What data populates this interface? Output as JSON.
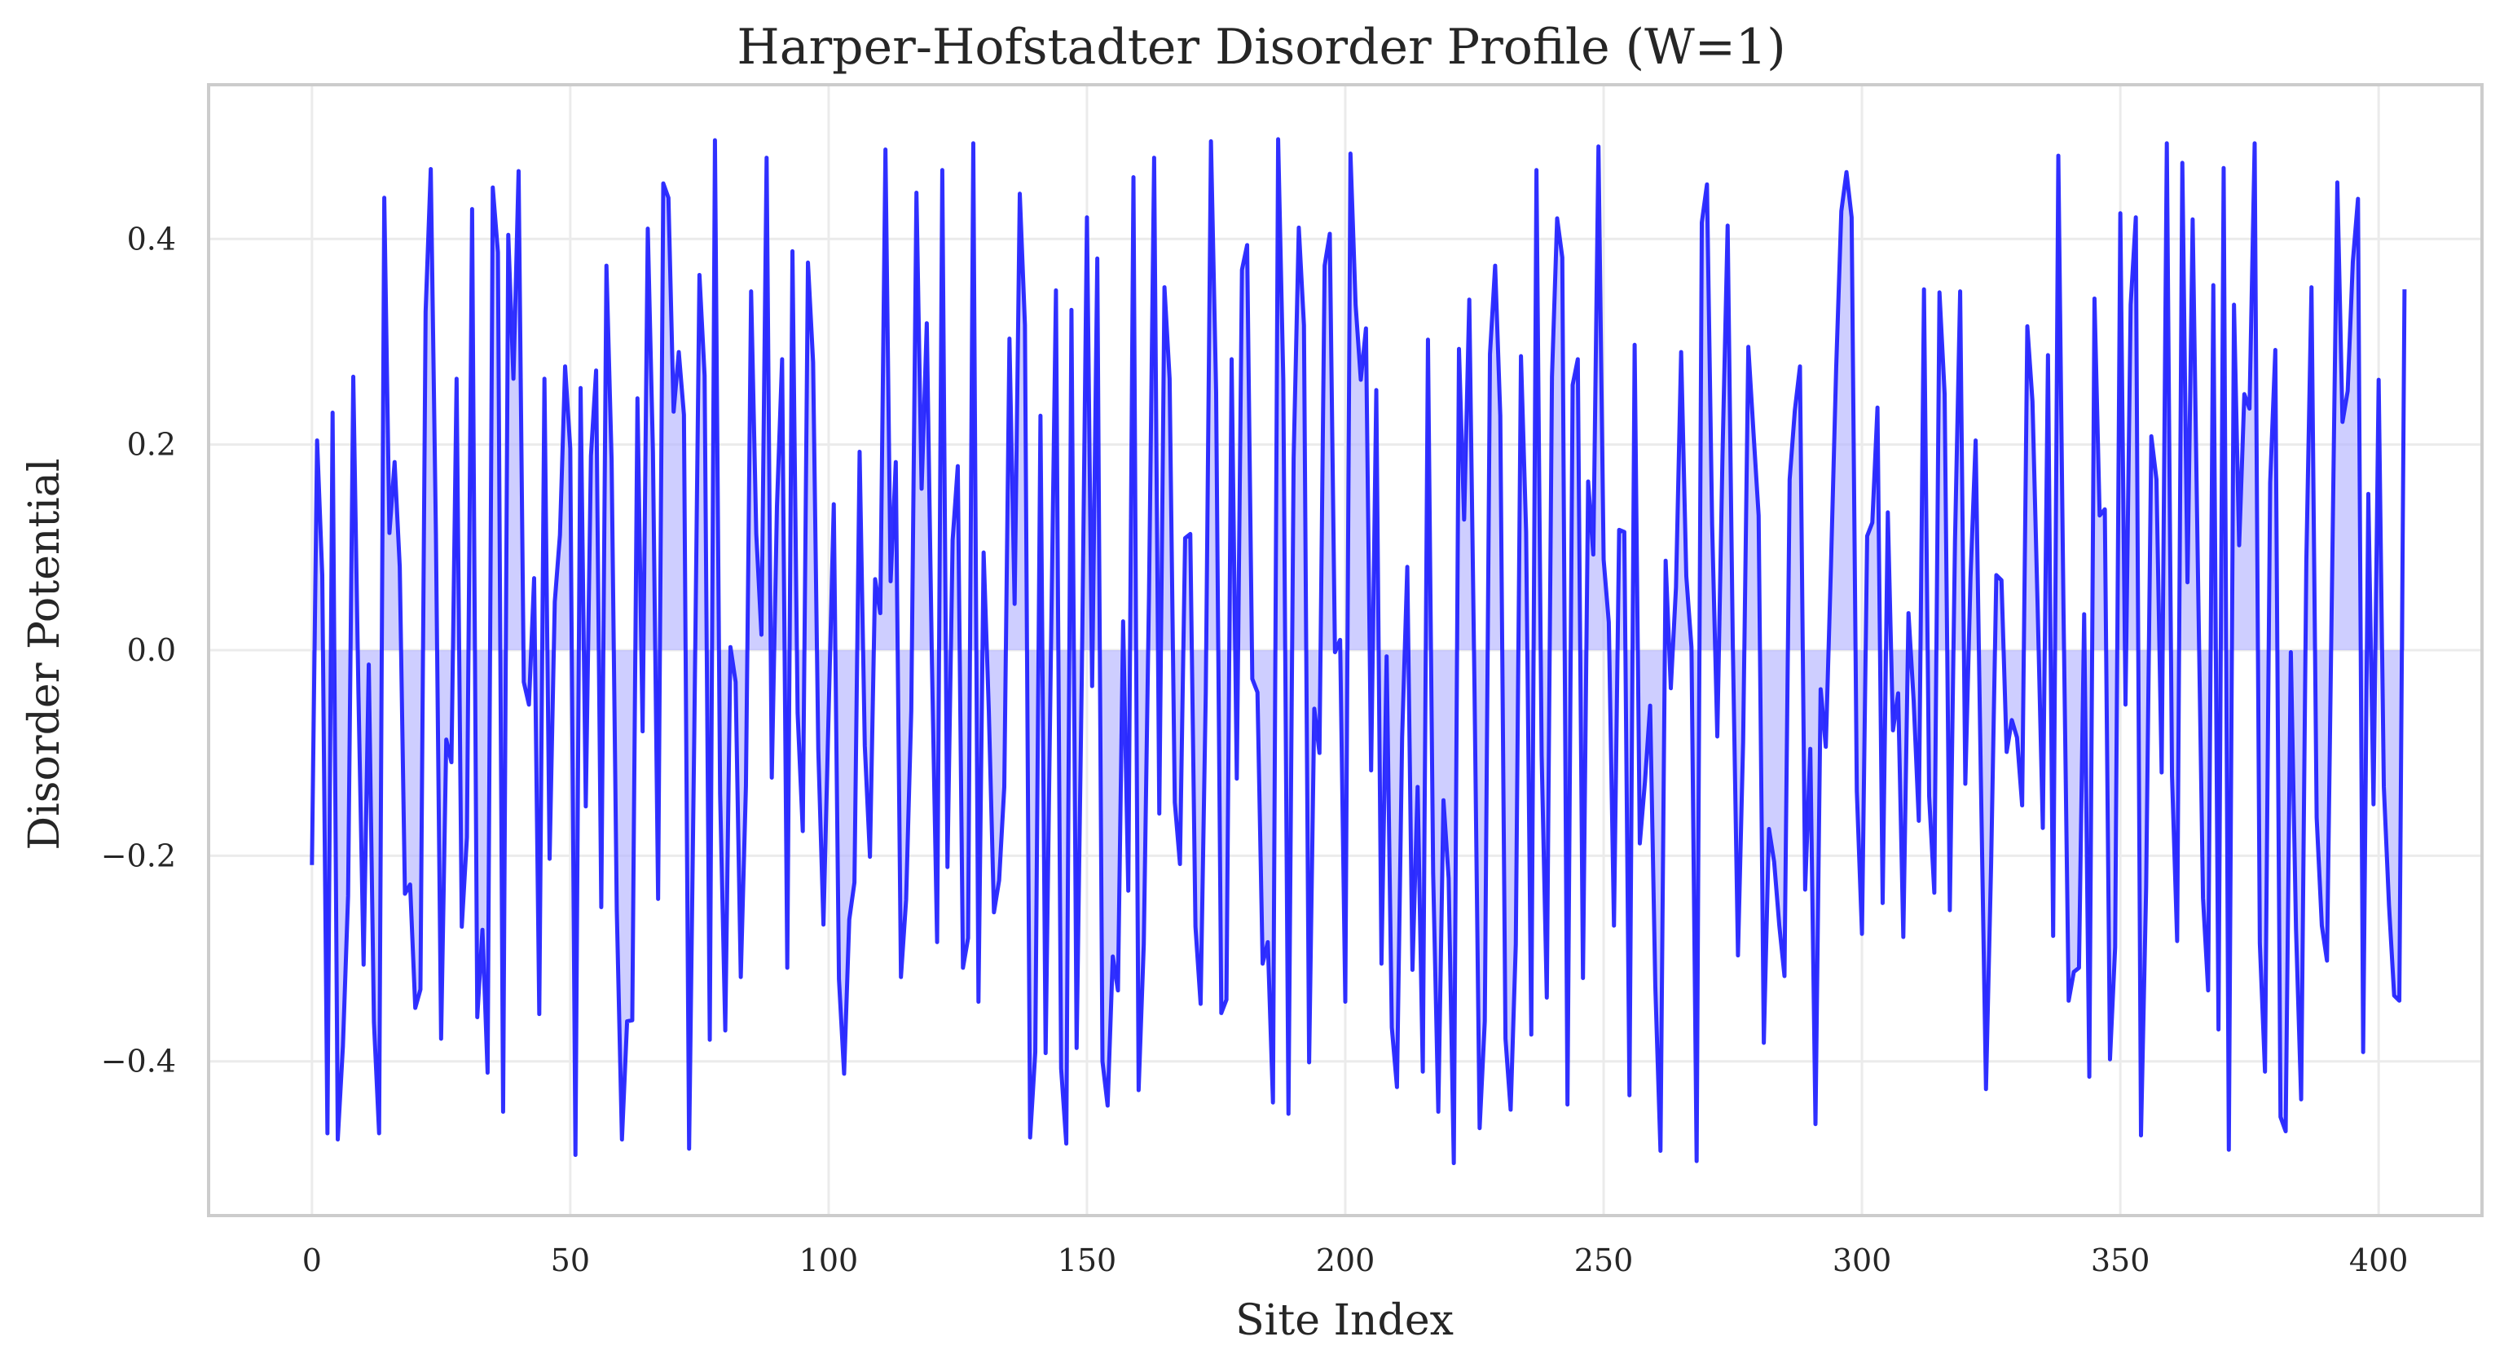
{
  "chart_data": {
    "type": "line",
    "title": "Harper-Hofstadter Disorder Profile (W=1)",
    "xlabel": "Site Index",
    "ylabel": "Disorder Potential",
    "xlim": [
      -20,
      420
    ],
    "ylim": [
      -0.55,
      0.55
    ],
    "xticks": [
      0,
      50,
      100,
      150,
      200,
      250,
      300,
      350,
      400
    ],
    "xtick_labels": [
      "0",
      "50",
      "100",
      "150",
      "200",
      "250",
      "300",
      "350",
      "400"
    ],
    "yticks": [
      -0.4,
      -0.2,
      0.0,
      0.2,
      0.4
    ],
    "ytick_labels": [
      "−0.4",
      "−0.2",
      "0.0",
      "0.2",
      "0.4"
    ],
    "grid": true,
    "fill_to_zero": true,
    "line_color": "#1a1aff",
    "fill_color": "#b3b3ff",
    "series": [
      {
        "x_start": 0,
        "x_step": 1,
        "values": [
          -0.209,
          0.204,
          0.073,
          -0.47,
          0.231,
          -0.476,
          -0.385,
          -0.239,
          0.266,
          -0.042,
          -0.306,
          -0.014,
          -0.362,
          -0.47,
          0.44,
          0.114,
          0.183,
          0.081,
          -0.237,
          -0.228,
          -0.348,
          -0.33,
          0.329,
          0.468,
          0.112,
          -0.378,
          -0.087,
          -0.109,
          0.264,
          -0.269,
          -0.182,
          0.429,
          -0.357,
          -0.272,
          -0.411,
          0.45,
          0.387,
          -0.449,
          0.404,
          0.264,
          0.466,
          -0.031,
          -0.053,
          0.07,
          -0.354,
          0.264,
          -0.203,
          0.047,
          0.112,
          0.276,
          0.196,
          -0.491,
          0.255,
          -0.152,
          0.189,
          0.272,
          -0.25,
          0.374,
          0.185,
          -0.253,
          -0.476,
          -0.361,
          -0.36,
          0.245,
          -0.079,
          0.41,
          0.193,
          -0.242,
          0.454,
          0.44,
          0.232,
          0.29,
          0.229,
          -0.485,
          -0.082,
          0.365,
          0.267,
          -0.379,
          0.496,
          -0.14,
          -0.37,
          0.003,
          -0.031,
          -0.318,
          -0.132,
          0.349,
          0.113,
          0.015,
          0.479,
          -0.124,
          0.14,
          0.283,
          -0.309,
          0.388,
          -0.061,
          -0.176,
          0.377,
          0.28,
          -0.097,
          -0.267,
          -0.061,
          0.142,
          -0.32,
          -0.412,
          -0.262,
          -0.226,
          0.193,
          -0.093,
          -0.201,
          0.069,
          0.036,
          0.487,
          0.067,
          0.183,
          -0.318,
          -0.243,
          -0.059,
          0.445,
          0.157,
          0.318,
          -0.013,
          -0.284,
          0.467,
          -0.211,
          0.107,
          0.179,
          -0.309,
          -0.28,
          0.493,
          -0.342,
          0.095,
          -0.058,
          -0.255,
          -0.224,
          -0.133,
          0.303,
          0.045,
          0.444,
          0.316,
          -0.474,
          -0.391,
          0.228,
          -0.392,
          -0.012,
          0.35,
          -0.407,
          -0.48,
          0.331,
          -0.387,
          -0.027,
          0.421,
          -0.035,
          0.381,
          -0.4,
          -0.443,
          -0.298,
          -0.331,
          0.028,
          -0.234,
          0.46,
          -0.428,
          -0.286,
          0.052,
          0.479,
          -0.159,
          0.353,
          0.264,
          -0.148,
          -0.208,
          0.109,
          0.113,
          -0.269,
          -0.344,
          -0.041,
          0.495,
          0.251,
          -0.353,
          -0.34,
          0.283,
          -0.125,
          0.37,
          0.394,
          -0.028,
          -0.041,
          -0.305,
          -0.284,
          -0.44,
          0.497,
          0.263,
          -0.451,
          0.187,
          0.411,
          0.316,
          -0.401,
          -0.057,
          -0.1,
          0.374,
          0.405,
          -0.002,
          0.01,
          -0.342,
          0.483,
          0.336,
          0.263,
          0.313,
          -0.117,
          0.253,
          -0.305,
          -0.006,
          -0.367,
          -0.425,
          -0.085,
          0.081,
          -0.311,
          -0.133,
          -0.41,
          0.302,
          -0.217,
          -0.449,
          -0.146,
          -0.222,
          -0.499,
          0.293,
          0.127,
          0.341,
          -0.035,
          -0.465,
          -0.361,
          0.288,
          0.374,
          0.228,
          -0.378,
          -0.447,
          -0.286,
          0.286,
          0.115,
          -0.374,
          0.467,
          -0.102,
          -0.338,
          0.266,
          0.42,
          0.382,
          -0.442,
          0.258,
          0.283,
          -0.319,
          0.164,
          0.093,
          0.49,
          0.088,
          0.027,
          -0.268,
          0.117,
          0.115,
          -0.433,
          0.297,
          -0.188,
          -0.128,
          -0.054,
          -0.327,
          -0.487,
          0.087,
          -0.037,
          0.061,
          0.29,
          0.072,
          0.003,
          -0.497,
          0.416,
          0.453,
          0.122,
          -0.084,
          0.189,
          0.413,
          0.006,
          -0.297,
          -0.089,
          0.295,
          0.212,
          0.131,
          -0.382,
          -0.174,
          -0.206,
          -0.268,
          -0.317,
          0.166,
          0.233,
          0.276,
          -0.233,
          -0.096,
          -0.461,
          -0.038,
          -0.094,
          0.083,
          0.274,
          0.427,
          0.465,
          0.421,
          -0.137,
          -0.276,
          0.111,
          0.124,
          0.236,
          -0.246,
          0.134,
          -0.078,
          -0.042,
          -0.279,
          0.036,
          -0.049,
          -0.166,
          0.351,
          -0.142,
          -0.236,
          0.348,
          0.249,
          -0.253,
          0.106,
          0.349,
          -0.13,
          0.07,
          0.204,
          -0.122,
          -0.427,
          -0.207,
          0.073,
          0.068,
          -0.099,
          -0.068,
          -0.085,
          -0.151,
          0.315,
          0.242,
          0.042,
          -0.173,
          0.287,
          -0.278,
          0.481,
          0.04,
          -0.341,
          -0.313,
          -0.309,
          0.035,
          -0.415,
          0.342,
          0.131,
          0.137,
          -0.398,
          -0.289,
          0.425,
          -0.053,
          0.336,
          0.421,
          -0.472,
          -0.231,
          0.208,
          0.166,
          -0.119,
          0.493,
          -0.122,
          -0.283,
          0.474,
          0.066,
          0.419,
          0.084,
          -0.241,
          -0.331,
          0.355,
          -0.369,
          0.469,
          -0.486,
          0.336,
          0.102,
          0.249,
          0.235,
          0.493,
          -0.285,
          -0.41,
          0.163,
          0.292,
          -0.454,
          -0.468,
          -0.002,
          -0.271,
          -0.437,
          0.087,
          0.353,
          -0.163,
          -0.268,
          -0.302,
          0.076,
          0.455,
          0.222,
          0.252,
          0.378,
          0.439,
          -0.391,
          0.152,
          -0.15,
          0.263,
          -0.133,
          -0.248,
          -0.336,
          -0.341,
          0.351
        ]
      }
    ]
  }
}
